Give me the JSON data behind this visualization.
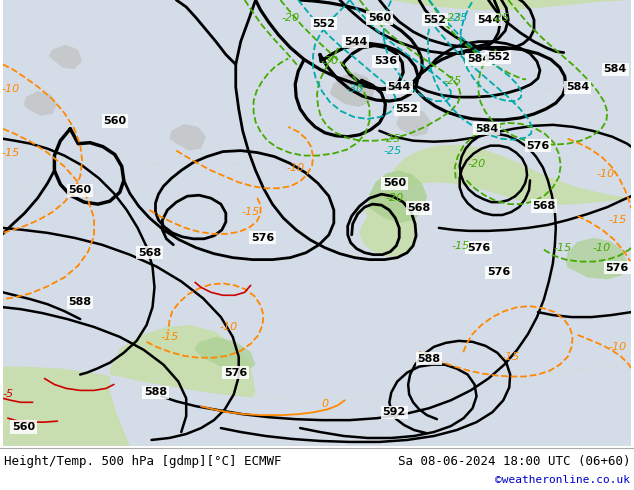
{
  "title_left": "Height/Temp. 500 hPa [gdmp][°C] ECMWF",
  "title_right": "Sa 08-06-2024 18:00 UTC (06+60)",
  "credit": "©weatheronline.co.uk",
  "bottom_text_color": "#000000",
  "credit_color": "#0000cc",
  "font_size_bottom": 9,
  "font_size_credit": 8,
  "bg_ocean": "#d8e8f0",
  "bg_land": "#e8f0e8",
  "bg_land_green": "#c8e0b0",
  "footer_bg": "#ffffff",
  "contour_color": "#000000",
  "temp_green_color": "#44aa00",
  "temp_orange_color": "#ff8800",
  "temp_cyan_color": "#00aaaa",
  "temp_red_color": "#cc0000",
  "contour_lw": 2.0,
  "temp_lw": 1.3
}
